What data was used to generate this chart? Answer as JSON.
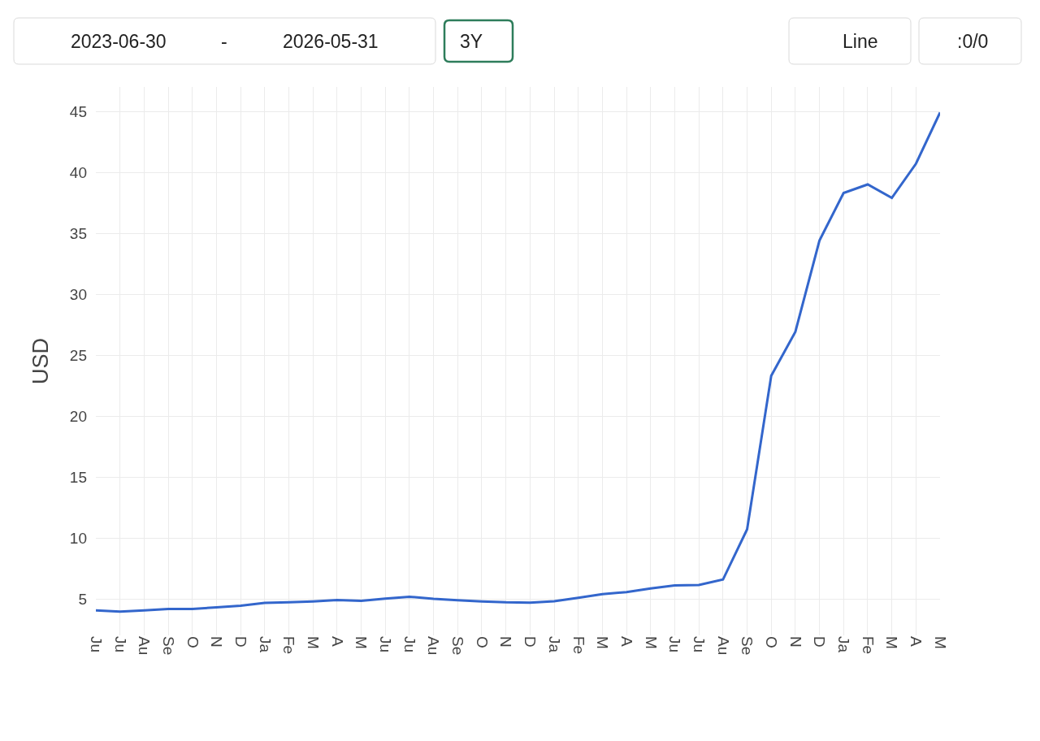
{
  "chart_data": {
    "type": "line",
    "categories": [
      "Ju",
      "Ju",
      "Au",
      "Se",
      "O",
      "N",
      "D",
      "Ja",
      "Fe",
      "M",
      "A",
      "M",
      "Ju",
      "Ju",
      "Au",
      "Se",
      "O",
      "N",
      "D",
      "Ja",
      "Fe",
      "M",
      "A",
      "M",
      "Ju",
      "Ju",
      "Au",
      "Se",
      "O",
      "N",
      "D",
      "Ja",
      "Fe",
      "M",
      "A",
      "M"
    ],
    "values": [
      4.05,
      3.95,
      4.05,
      4.17,
      4.17,
      4.3,
      4.43,
      4.67,
      4.71,
      4.79,
      4.9,
      4.83,
      5.02,
      5.17,
      5.0,
      4.88,
      4.79,
      4.71,
      4.68,
      4.8,
      5.08,
      5.38,
      5.55,
      5.85,
      6.1,
      6.13,
      6.58,
      10.7,
      23.3,
      26.9,
      34.4,
      38.3,
      39.0,
      37.9,
      40.7,
      44.9
    ],
    "color": "#3366cc",
    "line_style": "solid",
    "ylabel": "USD",
    "ylim": [
      2,
      47
    ],
    "yticks": [
      5,
      10,
      15,
      20,
      25,
      30,
      35,
      40,
      45
    ],
    "grid": true,
    "annotations": [
      "2023-06-30",
      "-",
      "2026-05-31",
      "3Y",
      "Line",
      ":0/0"
    ]
  }
}
